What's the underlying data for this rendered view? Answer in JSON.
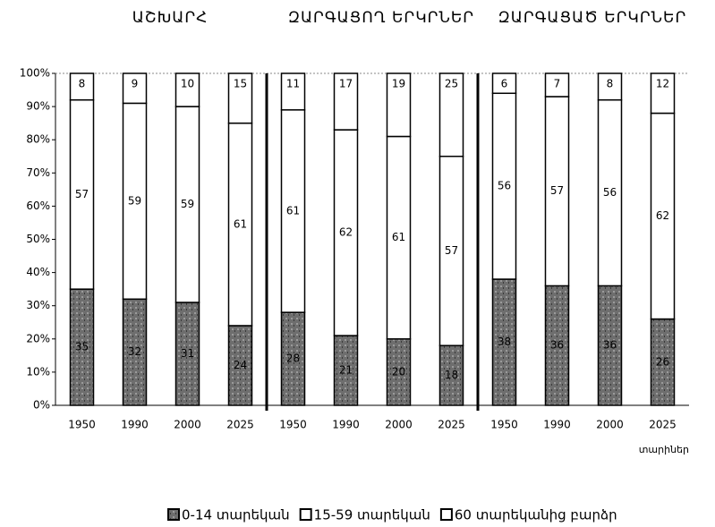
{
  "chart_data": {
    "type": "stacked_bar",
    "group_labels": [
      "ԱՇԽԱՐՀ",
      "ԶԱՐԳԱՑՈՂ ԵՐԿՐՆԵՐ",
      "ԶԱՐԳԱՑԱԾ ԵՐԿՐՆԵՐ"
    ],
    "group_size": 4,
    "categories": [
      "1950",
      "1990",
      "2000",
      "2025",
      "1950",
      "1990",
      "2000",
      "2025",
      "1950",
      "1990",
      "2000",
      "2025"
    ],
    "x_label": "տարիներ",
    "series": [
      {
        "name": "0-14 տարեկան",
        "color": "#6e6e6e",
        "values": [
          35,
          32,
          31,
          24,
          28,
          21,
          20,
          18,
          38,
          36,
          36,
          26
        ]
      },
      {
        "name": "15-59 տարեկան",
        "color": "#ffffff",
        "values": [
          57,
          59,
          59,
          61,
          61,
          62,
          61,
          57,
          56,
          57,
          56,
          62
        ]
      },
      {
        "name": "60 տարեկանից բարձր",
        "color": "#ffffff",
        "values": [
          8,
          9,
          10,
          15,
          11,
          17,
          19,
          25,
          6,
          7,
          8,
          12
        ]
      }
    ],
    "ylim": [
      0,
      100
    ],
    "yticks": [
      {
        "value": 0,
        "label": "0%"
      },
      {
        "value": 10,
        "label": "10%"
      },
      {
        "value": 20,
        "label": "20%"
      },
      {
        "value": 30,
        "label": "30%"
      },
      {
        "value": 40,
        "label": "40%"
      },
      {
        "value": 50,
        "label": "50%"
      },
      {
        "value": 60,
        "label": "60%"
      },
      {
        "value": 70,
        "label": "70%"
      },
      {
        "value": 80,
        "label": "80%"
      },
      {
        "value": 90,
        "label": "90%"
      },
      {
        "value": 100,
        "label": "100%"
      }
    ]
  }
}
